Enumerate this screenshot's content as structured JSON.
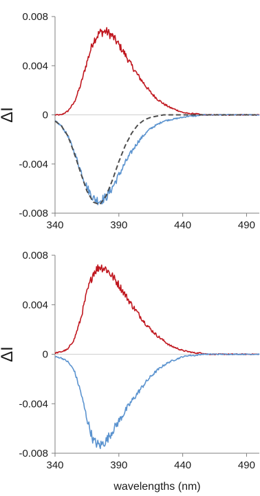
{
  "chart_data": [
    {
      "type": "line",
      "title": "",
      "xlabel": "",
      "ylabel": "ΔI",
      "xlim": [
        340,
        500
      ],
      "ylim": [
        -0.008,
        0.008
      ],
      "x_ticks": [
        340,
        390,
        440,
        490
      ],
      "x_tick_labels": [
        "340",
        "390",
        "440",
        "490"
      ],
      "y_ticks": [
        0.008,
        0.004,
        0,
        -0.004,
        -0.008
      ],
      "y_tick_labels": [
        "0.008",
        "0.004",
        "0",
        "-0.004",
        "-0.008"
      ],
      "grid": false,
      "series": [
        {
          "color": "#c0171f",
          "style": "solid",
          "x": [
            340,
            345,
            350,
            355,
            360,
            365,
            370,
            375,
            380,
            385,
            390,
            395,
            400,
            405,
            410,
            415,
            420,
            425,
            430,
            435,
            440,
            445,
            450,
            455,
            460,
            465,
            470,
            475,
            480,
            485,
            490,
            495,
            500
          ],
          "y": [
            0.0,
            0.0,
            0.0003,
            0.001,
            0.0024,
            0.0043,
            0.006,
            0.0067,
            0.0068,
            0.0064,
            0.0057,
            0.0049,
            0.004,
            0.0032,
            0.0025,
            0.0018,
            0.0013,
            0.0009,
            0.0006,
            0.0004,
            0.0002,
            0.0001,
            0.0001,
            0.0,
            0.0,
            0.0,
            0.0,
            0.0,
            0.0,
            0.0,
            0.0,
            0.0,
            0.0
          ]
        },
        {
          "color": "#5b93cf",
          "style": "solid",
          "x": [
            340,
            345,
            350,
            355,
            360,
            365,
            370,
            375,
            380,
            385,
            390,
            395,
            400,
            405,
            410,
            415,
            420,
            425,
            430,
            435,
            440,
            445,
            450,
            455,
            460,
            465,
            470,
            475,
            480,
            485,
            490,
            495,
            500
          ],
          "y": [
            -0.0005,
            -0.0009,
            -0.0017,
            -0.003,
            -0.0045,
            -0.0059,
            -0.0068,
            -0.007,
            -0.0067,
            -0.0059,
            -0.0049,
            -0.0039,
            -0.003,
            -0.0022,
            -0.0016,
            -0.0011,
            -0.0008,
            -0.0005,
            -0.0004,
            -0.0003,
            -0.0002,
            -0.0001,
            -0.0001,
            0.0,
            0.0,
            0.0,
            0.0,
            0.0,
            0.0,
            0.0,
            0.0,
            0.0,
            0.0
          ]
        },
        {
          "color": "#4d4d4d",
          "style": "dashed",
          "x": [
            340,
            345,
            350,
            355,
            360,
            365,
            370,
            375,
            380,
            385,
            390,
            395,
            400,
            405,
            410,
            415,
            420,
            425,
            430,
            435,
            440,
            445,
            450,
            455,
            460,
            470,
            480,
            490,
            500
          ],
          "y": [
            -0.0005,
            -0.0009,
            -0.0017,
            -0.0031,
            -0.0047,
            -0.0062,
            -0.0071,
            -0.0073,
            -0.0066,
            -0.0053,
            -0.0038,
            -0.0025,
            -0.0015,
            -0.0008,
            -0.0004,
            -0.0002,
            -0.0001,
            -0.0,
            0.0,
            0.0,
            0.0,
            0.0,
            0.0,
            0.0,
            0.0,
            0.0,
            0.0,
            0.0,
            0.0
          ]
        }
      ]
    },
    {
      "type": "line",
      "title": "",
      "xlabel": "wavelengths (nm)",
      "ylabel": "ΔI",
      "xlim": [
        340,
        500
      ],
      "ylim": [
        -0.008,
        0.008
      ],
      "x_ticks": [
        340,
        390,
        440,
        490
      ],
      "x_tick_labels": [
        "340",
        "390",
        "440",
        "490"
      ],
      "y_ticks": [
        0.008,
        0.004,
        0,
        -0.004,
        -0.008
      ],
      "y_tick_labels": [
        "0.008",
        "0.004",
        "0",
        "-0.004",
        "-0.008"
      ],
      "grid": false,
      "series": [
        {
          "color": "#c0171f",
          "style": "solid",
          "x": [
            340,
            345,
            350,
            355,
            360,
            365,
            370,
            375,
            380,
            385,
            390,
            395,
            400,
            405,
            410,
            415,
            420,
            425,
            430,
            435,
            440,
            445,
            450,
            455,
            460,
            465,
            470,
            475,
            480,
            485,
            490,
            495,
            500
          ],
          "y": [
            0.0001,
            0.0002,
            0.0004,
            0.0012,
            0.0028,
            0.005,
            0.0066,
            0.0071,
            0.0069,
            0.0063,
            0.0056,
            0.0048,
            0.004,
            0.0033,
            0.0026,
            0.002,
            0.0015,
            0.0011,
            0.0007,
            0.0005,
            0.0003,
            0.0002,
            0.0001,
            0.0001,
            0.0,
            0.0,
            0.0,
            0.0,
            0.0,
            0.0,
            0.0,
            0.0,
            0.0
          ]
        },
        {
          "color": "#5b93cf",
          "style": "solid",
          "x": [
            340,
            345,
            350,
            355,
            360,
            365,
            370,
            375,
            380,
            385,
            390,
            395,
            400,
            405,
            410,
            415,
            420,
            425,
            430,
            435,
            440,
            445,
            450,
            455,
            460,
            465,
            470,
            475,
            480,
            485,
            490,
            495,
            500
          ],
          "y": [
            -0.0002,
            -0.0003,
            -0.0006,
            -0.0013,
            -0.003,
            -0.0052,
            -0.007,
            -0.0074,
            -0.007,
            -0.0062,
            -0.0054,
            -0.0046,
            -0.0038,
            -0.0031,
            -0.0024,
            -0.0018,
            -0.0013,
            -0.0009,
            -0.0006,
            -0.0004,
            -0.0002,
            -0.0001,
            -0.0001,
            0.0,
            0.0,
            0.0,
            0.0,
            0.0,
            0.0,
            0.0,
            0.0,
            0.0,
            0.0
          ]
        }
      ]
    }
  ]
}
